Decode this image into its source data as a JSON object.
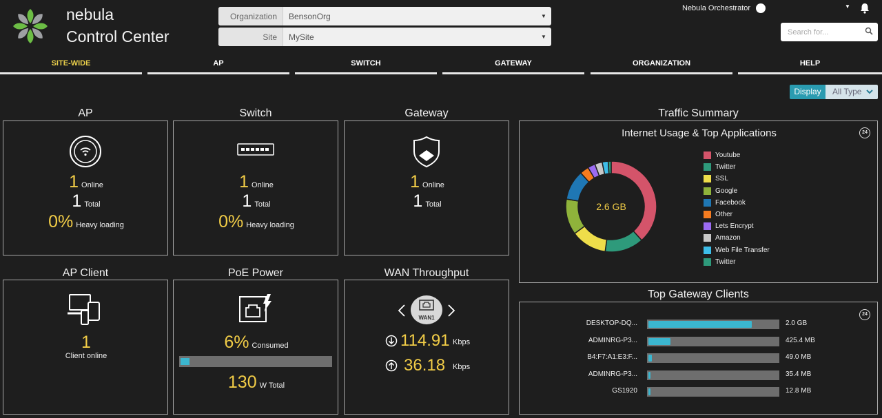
{
  "brand": {
    "line1": "nebula",
    "line2": "Control Center"
  },
  "organization": {
    "label": "Organization",
    "value": "BensonOrg"
  },
  "site": {
    "label": "Site",
    "value": "MySite"
  },
  "header": {
    "orchestrator": "Nebula Orchestrator"
  },
  "search": {
    "placeholder": "Search for..."
  },
  "tabs": [
    {
      "label": "SITE-WIDE",
      "active": true
    },
    {
      "label": "AP"
    },
    {
      "label": "SWITCH"
    },
    {
      "label": "GATEWAY"
    },
    {
      "label": "ORGANIZATION"
    },
    {
      "label": "HELP"
    }
  ],
  "display": {
    "button": "Display",
    "type": "All Type"
  },
  "ap": {
    "title": "AP",
    "online": "1",
    "online_label": "Online",
    "total": "1",
    "total_label": "Total",
    "heavy": "0%",
    "heavy_label": "Heavy loading"
  },
  "switch": {
    "title": "Switch",
    "online": "1",
    "online_label": "Online",
    "total": "1",
    "total_label": "Total",
    "heavy": "0%",
    "heavy_label": "Heavy loading"
  },
  "gateway": {
    "title": "Gateway",
    "online": "1",
    "online_label": "Online",
    "total": "1",
    "total_label": "Total"
  },
  "ap_client": {
    "title": "AP Client",
    "count": "1",
    "label": "Client online"
  },
  "poe": {
    "title": "PoE Power",
    "consumed": "6%",
    "consumed_label": "Consumed",
    "consumed_fraction": 0.06,
    "total": "130",
    "total_label": "W Total"
  },
  "wan": {
    "title": "WAN Throughput",
    "interface": "WAN1",
    "down": "114.91",
    "up": "36.18",
    "unit": "Kbps"
  },
  "traffic": {
    "title": "Traffic Summary",
    "subtitle": "Internet Usage & Top Applications",
    "badge": "24",
    "total": "2.6 GB"
  },
  "chart_data": {
    "type": "pie",
    "title": "Internet Usage & Top Applications",
    "center_label": "2.6 GB",
    "categories": [
      "Youtube",
      "Twitter",
      "SSL",
      "Google",
      "Facebook",
      "Other",
      "Lets Encrypt",
      "Amazon",
      "Web File Transfer",
      "Twitter"
    ],
    "values": [
      36,
      13,
      12,
      12,
      10,
      3,
      2.5,
      2.5,
      2,
      1
    ],
    "colors": [
      "#d4546a",
      "#2e9a7b",
      "#eedd4a",
      "#8fb33b",
      "#1f77b4",
      "#f57c20",
      "#9b6bf2",
      "#c8c8c8",
      "#3dbde8",
      "#2e9a7b"
    ]
  },
  "clients": {
    "title": "Top Gateway Clients",
    "badge": "24",
    "rows": [
      {
        "name": "DESKTOP-DQ...",
        "value": "2.0 GB",
        "fraction": 0.8
      },
      {
        "name": "ADMINRG-P3...",
        "value": "425.4 MB",
        "fraction": 0.17
      },
      {
        "name": "B4:F7:A1:E3:F...",
        "value": "49.0 MB",
        "fraction": 0.025
      },
      {
        "name": "ADMINRG-P3...",
        "value": "35.4 MB",
        "fraction": 0.018
      },
      {
        "name": "GS1920",
        "value": "12.8 MB",
        "fraction": 0.012
      }
    ]
  }
}
